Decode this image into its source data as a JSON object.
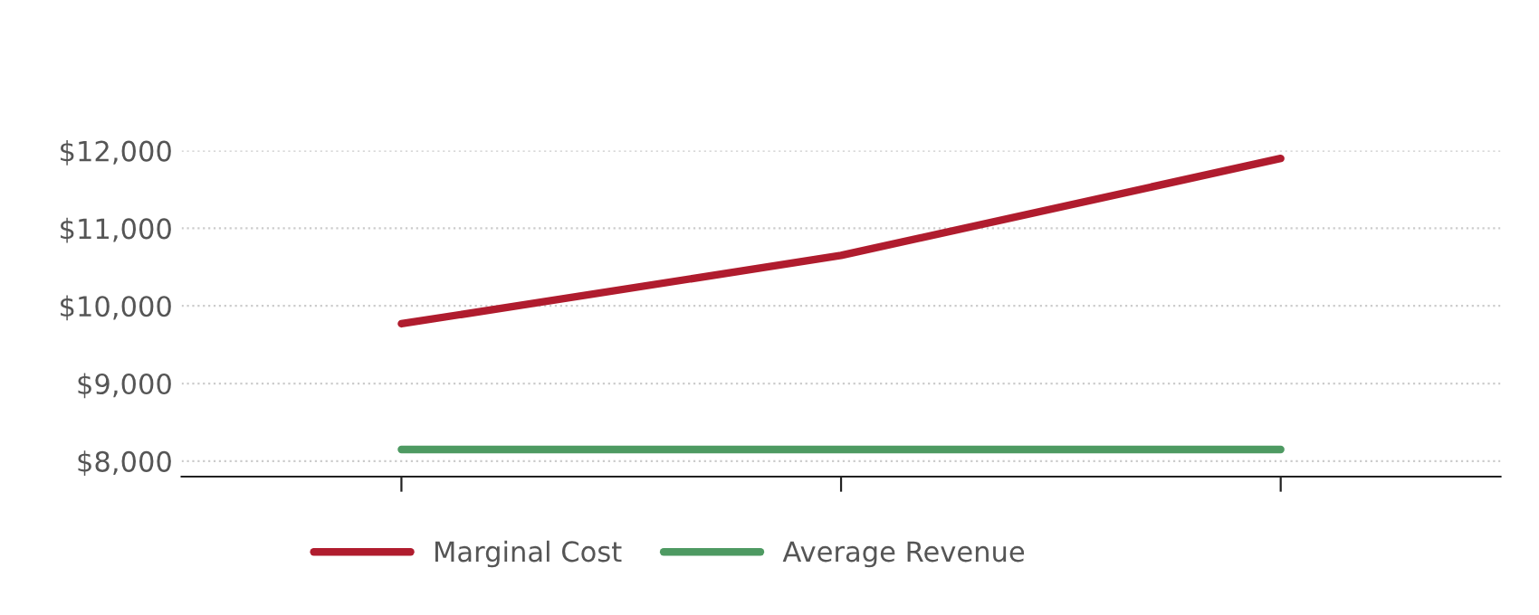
{
  "chart_data": {
    "type": "line",
    "categories": [
      null,
      null,
      null
    ],
    "series": [
      {
        "name": "Marginal Cost",
        "color": "#b01c2e",
        "values": [
          9770,
          10650,
          11900
        ]
      },
      {
        "name": "Average Revenue",
        "color": "#4e9a62",
        "values": [
          8150,
          8150,
          8150
        ]
      }
    ],
    "ylim": [
      7800,
      12000
    ],
    "yticks": [
      {
        "value": 8000,
        "label": "$8,000"
      },
      {
        "value": 9000,
        "label": "$9,000"
      },
      {
        "value": 10000,
        "label": "$10,000"
      },
      {
        "value": 11000,
        "label": "$11,000"
      },
      {
        "value": 12000,
        "label": "$12,000"
      }
    ],
    "grid": "y",
    "legend": "bottom",
    "marker": "none",
    "line_style": "solid"
  }
}
